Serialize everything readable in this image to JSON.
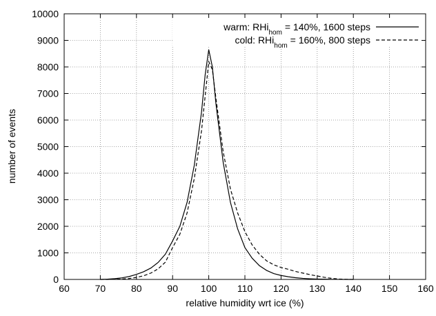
{
  "chart_data": {
    "type": "line",
    "xlabel": "relative humidity wrt ice (%)",
    "ylabel": "number of events",
    "xlim": [
      60,
      160
    ],
    "ylim": [
      0,
      10000
    ],
    "xticks": [
      60,
      70,
      80,
      90,
      100,
      110,
      120,
      130,
      140,
      150,
      160
    ],
    "yticks": [
      0,
      1000,
      2000,
      3000,
      4000,
      5000,
      6000,
      7000,
      8000,
      9000,
      10000
    ],
    "grid": true,
    "legend": "upper right",
    "x": [
      70,
      72,
      74,
      76,
      78,
      80,
      82,
      84,
      86,
      88,
      90,
      92,
      94,
      96,
      98,
      99,
      100,
      101,
      102,
      104,
      106,
      108,
      110,
      112,
      114,
      116,
      118,
      120,
      122,
      124,
      126,
      128,
      130,
      132,
      134,
      136,
      138,
      140
    ],
    "series": [
      {
        "name": {
          "text": "warm: RHi",
          "sub": "hom",
          "rest": " = 140%, 1600 steps"
        },
        "color": "#000000",
        "dash": "solid",
        "values": [
          0,
          10,
          30,
          60,
          110,
          190,
          290,
          430,
          640,
          950,
          1450,
          2000,
          2900,
          4300,
          6300,
          7700,
          8650,
          8000,
          6600,
          4400,
          2900,
          1900,
          1200,
          800,
          520,
          340,
          220,
          150,
          100,
          65,
          40,
          25,
          15,
          10,
          5,
          2,
          0,
          0
        ]
      },
      {
        "name": {
          "text": "cold: RHi",
          "sub": "hom",
          "rest": " = 160%,   800 steps"
        },
        "color": "#000000",
        "dash": "dashed",
        "values": [
          0,
          0,
          5,
          15,
          35,
          75,
          140,
          240,
          400,
          650,
          1200,
          1700,
          2500,
          3800,
          5600,
          6900,
          8200,
          7900,
          6800,
          4800,
          3400,
          2500,
          1800,
          1300,
          950,
          700,
          550,
          450,
          380,
          300,
          240,
          180,
          130,
          80,
          40,
          15,
          5,
          0
        ]
      }
    ]
  }
}
